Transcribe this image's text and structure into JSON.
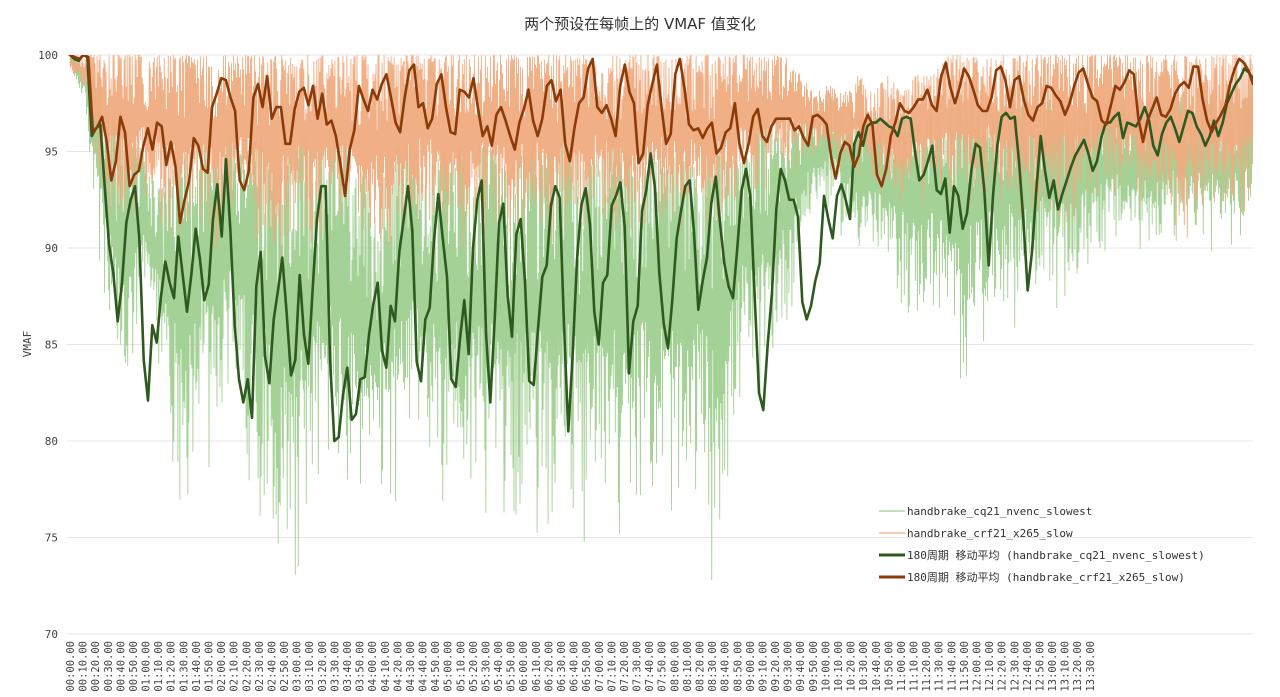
{
  "chart_data": {
    "type": "line",
    "title": "两个预设在每帧上的 VMAF 值变化",
    "xlabel": "",
    "ylabel": "VMAF",
    "ylim": [
      70,
      100
    ],
    "y_ticks": [
      "100",
      "95",
      "90",
      "85",
      "80",
      "75",
      "70"
    ],
    "x_ticks": [
      "00:00.00",
      "00:10.00",
      "00:20.00",
      "00:30.00",
      "00:40.00",
      "00:50.00",
      "01:00.00",
      "01:10.00",
      "01:20.00",
      "01:30.00",
      "01:40.00",
      "01:50.00",
      "02:00.00",
      "02:10.00",
      "02:20.00",
      "02:30.00",
      "02:40.00",
      "02:50.00",
      "03:00.00",
      "03:10.00",
      "03:20.00",
      "03:30.00",
      "03:40.00",
      "03:50.00",
      "04:00.00",
      "04:10.00",
      "04:20.00",
      "04:30.00",
      "04:40.00",
      "04:50.00",
      "05:00.00",
      "05:10.00",
      "05:20.00",
      "05:30.00",
      "05:40.00",
      "05:50.00",
      "06:00.00",
      "06:10.00",
      "06:20.00",
      "06:30.00",
      "06:40.00",
      "06:50.00",
      "07:00.00",
      "07:10.00",
      "07:20.00",
      "07:30.00",
      "07:40.00",
      "07:50.00",
      "08:00.00",
      "08:10.00",
      "08:20.00",
      "08:30.00",
      "08:40.00",
      "08:50.00",
      "09:00.00",
      "09:10.00",
      "09:20.00",
      "09:30.00",
      "09:40.00",
      "09:50.00",
      "10:00.00",
      "10:10.00",
      "10:20.00",
      "10:30.00",
      "10:40.00",
      "10:50.00",
      "11:00.00",
      "11:10.00",
      "11:20.00",
      "11:30.00",
      "11:40.00",
      "11:50.00",
      "12:00.00",
      "12:10.00",
      "12:20.00",
      "12:30.00",
      "12:40.00",
      "12:50.00",
      "13:00.00",
      "13:10.00",
      "13:20.00",
      "13:30.00"
    ],
    "grid": true,
    "legend_position": "bottom-right",
    "colors": {
      "nvenc_raw": "#9fcf8f",
      "x265_raw": "#f0ab80",
      "nvenc_ma": "#2e5a1f",
      "x265_ma": "#8b3a0a",
      "grid": "#e6e6e6"
    },
    "series": [
      {
        "name": "handbrake_cq21_nvenc_slowest",
        "kind": "raw",
        "envelope_top": [
          100,
          99.5,
          99,
          97,
          96,
          95,
          93,
          94,
          95,
          96,
          94.5,
          96,
          95,
          96,
          94,
          95,
          96,
          95,
          96,
          95.5,
          94,
          93,
          95,
          96,
          94,
          95,
          96,
          95,
          96,
          95,
          94,
          95,
          96,
          95,
          96,
          95,
          95,
          96,
          95,
          94,
          95,
          96,
          95,
          94,
          96,
          95,
          96,
          97,
          96,
          96.5,
          97,
          97,
          98,
          97,
          97.5,
          97,
          96,
          97,
          96.5,
          97,
          97.5,
          98,
          97.5,
          98,
          97.5,
          98,
          97,
          98,
          97.5,
          97,
          98,
          97.5,
          98,
          97,
          98,
          97.5,
          98,
          97,
          98,
          97,
          98,
          99
        ],
        "envelope_bottom": [
          99.5,
          97,
          87.5,
          81,
          80,
          86,
          84,
          77,
          74.5,
          79,
          77,
          83,
          78,
          75,
          73,
          71,
          74,
          76,
          77,
          74,
          76,
          73.5,
          75,
          76,
          80,
          75,
          77,
          74,
          76,
          75,
          74,
          75,
          73.5,
          74,
          75,
          72,
          75,
          76,
          72.5,
          77,
          75,
          75,
          72,
          77,
          71.5,
          76,
          81,
          80,
          83,
          85,
          89,
          91.5,
          91.5,
          90,
          89,
          88.5,
          88,
          86,
          85,
          86,
          84,
          80.5,
          85,
          84.5,
          86,
          85.5,
          86.5,
          87,
          86,
          87,
          88.5,
          89,
          89,
          89.5,
          89,
          90,
          89,
          90,
          89.5,
          90,
          89,
          91
        ]
      },
      {
        "name": "handbrake_crf21_x265_slow",
        "kind": "raw",
        "envelope_top": [
          100,
          100,
          100,
          100,
          100,
          100,
          100,
          100,
          100,
          100,
          100,
          100,
          100,
          100,
          100,
          100,
          100,
          100,
          100,
          100,
          100,
          100,
          100,
          100,
          100,
          100,
          100,
          100,
          100,
          100,
          100,
          100,
          100,
          100,
          100,
          100,
          100,
          100,
          100,
          100,
          100,
          100,
          100,
          100,
          100,
          100,
          100,
          100,
          100,
          100,
          99,
          98,
          98.5,
          98,
          99,
          98,
          99,
          98,
          99,
          99,
          100,
          100,
          100,
          100,
          100,
          100,
          100,
          100,
          100,
          100,
          100,
          100,
          100,
          100,
          100,
          100,
          100,
          100,
          100,
          100,
          100,
          100
        ],
        "envelope_bottom": [
          99,
          98,
          92,
          91,
          90.5,
          92,
          91,
          90,
          89.5,
          90,
          89,
          90,
          91,
          89,
          88.5,
          89,
          90,
          89,
          90,
          90.5,
          89,
          88.5,
          88.5,
          90,
          91,
          90,
          90,
          89.5,
          90,
          90.5,
          89,
          90.5,
          90,
          89.5,
          90.5,
          90,
          91,
          90,
          89.5,
          90,
          91,
          90.5,
          90,
          91,
          90,
          90.5,
          92,
          92,
          93,
          93,
          94,
          94.5,
          94,
          93.5,
          93,
          92.5,
          92,
          91,
          92,
          91.5,
          92,
          91,
          91.5,
          92,
          91,
          90.5,
          91,
          91.5,
          91,
          91,
          91.5,
          92,
          91.5,
          91,
          90.5,
          90,
          89.5,
          90.5,
          91,
          90.5,
          91,
          91
        ]
      },
      {
        "name": "180周期 移动平均 (handbrake_cq21_nvenc_slowest)",
        "kind": "moving_average",
        "values": [
          100,
          99.8,
          99.7,
          100,
          99.9,
          95.8,
          96.2,
          96.4,
          93.2,
          90.2,
          88.7,
          86.2,
          88.2,
          91.3,
          92.5,
          93.2,
          90.5,
          84.2,
          82.1,
          86,
          85.1,
          87.5,
          89.3,
          88.2,
          87.4,
          90.6,
          88.6,
          86.7,
          88.6,
          91,
          89.4,
          87.3,
          88.1,
          91.5,
          93.3,
          90.6,
          94.6,
          91,
          86,
          83.2,
          82,
          83.2,
          81.2,
          88,
          89.8,
          84.4,
          83,
          86.3,
          87.8,
          89.5,
          86.6,
          83.4,
          84.2,
          88.6,
          85.5,
          84,
          87.9,
          91.5,
          93.2,
          93.2,
          84.3,
          80,
          80.2,
          82.4,
          83.8,
          81.1,
          81.4,
          83.2,
          83.3,
          85.5,
          87.1,
          88.2,
          84.7,
          83.8,
          87,
          86.2,
          89.8,
          91.5,
          93.2,
          90.9,
          84.1,
          83.1,
          86.3,
          86.9,
          90.4,
          92.8,
          90.5,
          88.5,
          83.2,
          82.8,
          85.3,
          87.3,
          84.5,
          90,
          92.5,
          93.5,
          85.6,
          82,
          86.3,
          91.3,
          92.3,
          87.5,
          85.4,
          90.7,
          91.5,
          88.2,
          83.1,
          82.9,
          85.8,
          88.5,
          89.1,
          92.2,
          93.2,
          92.6,
          86,
          80.5,
          84.5,
          89.4,
          92.2,
          93.1,
          91.2,
          86.7,
          85,
          88.2,
          88.6,
          92.2,
          92.7,
          93.4,
          91.1,
          83.5,
          86.2,
          87,
          91.9,
          93,
          94.9,
          93.1,
          88.7,
          86.1,
          84.8,
          87.3,
          90.5,
          91.9,
          93.2,
          93.5,
          90.8,
          86.8,
          88.3,
          89.5,
          92.3,
          93.7,
          91.3,
          89.2,
          88,
          87.4,
          90,
          93,
          94.1,
          92.7,
          87.5,
          82.5,
          81.6,
          85,
          87.7,
          92,
          94.1,
          93.5,
          92.5,
          92.5,
          91.6,
          87.2,
          86.3,
          87,
          88.3,
          89.2,
          92.7,
          91.5,
          90.5,
          92.7,
          93.3,
          92.5,
          91.5,
          95.4,
          96,
          95.3,
          96.3,
          96.5,
          96.5,
          96.7,
          96.5,
          96.3,
          96.2,
          95.8,
          96.7,
          96.8,
          96.7,
          95,
          93.5,
          93.8,
          94.5,
          95.3,
          93,
          92.8,
          93.6,
          90.8,
          93.2,
          92.7,
          91,
          91.8,
          94,
          95.4,
          95.2,
          93,
          89.1,
          92.7,
          95.3,
          96.8,
          97,
          96.7,
          96.8,
          94.5,
          91.5,
          87.8,
          89.8,
          93,
          95.8,
          94,
          92.6,
          93.5,
          92,
          92.8,
          93.5,
          94.2,
          94.8,
          95.2,
          95.6,
          94.9,
          94,
          94.5,
          95.7,
          96.5,
          96.5,
          96.8,
          97,
          95.7,
          96.5,
          96.4,
          96.3,
          96.7,
          97.3,
          96.6,
          95.3,
          94.8,
          95.9,
          96.5,
          96.8,
          96.2,
          95.5,
          96.3,
          97.1,
          97,
          96.3,
          95.9,
          95.3,
          95.8,
          96.6,
          95.8,
          96.5,
          97.5,
          98,
          98.5,
          98.8,
          99.3,
          99.1,
          98.8
        ]
      },
      {
        "name": "180周期 移动平均 (handbrake_crf21_x265_slow)",
        "kind": "moving_average",
        "values": [
          100,
          99.9,
          99.8,
          100,
          99.9,
          96,
          96.3,
          96.8,
          95.5,
          93.5,
          94.5,
          96.8,
          96,
          93.2,
          93.8,
          94,
          95.3,
          96.2,
          95.1,
          96.5,
          96.3,
          94.3,
          95.5,
          94.2,
          91.3,
          92.5,
          93.5,
          95.7,
          95.3,
          94.1,
          93.9,
          97.3,
          98,
          98.8,
          98.7,
          97.8,
          97.1,
          93.5,
          93,
          94,
          97.8,
          98.5,
          97.3,
          98.9,
          96.7,
          97.3,
          97.3,
          95.4,
          95.4,
          97.2,
          98.1,
          98.3,
          97.4,
          98.4,
          96.7,
          98,
          96.4,
          96.6,
          95.8,
          94.3,
          92.7,
          95.1,
          96.1,
          98.4,
          97.7,
          97.1,
          98.2,
          97.7,
          98.5,
          99,
          97.8,
          96.5,
          96,
          97.8,
          99.2,
          99.5,
          97.3,
          97.5,
          96.2,
          96.7,
          98.5,
          99,
          97.3,
          96,
          95.9,
          98.2,
          98.1,
          97.8,
          98.8,
          97.2,
          95.8,
          96.3,
          95.3,
          96.9,
          97.3,
          96.6,
          95.8,
          95.1,
          96.5,
          97.2,
          98.2,
          96.6,
          95.8,
          96.7,
          98.4,
          98.7,
          97.6,
          98.2,
          95.4,
          94.5,
          96.2,
          97.5,
          97.8,
          99.3,
          99.8,
          97.3,
          97,
          97.4,
          96.7,
          95.8,
          98.4,
          99.5,
          98.1,
          97.5,
          94.4,
          94.9,
          97.4,
          98.5,
          99.5,
          97.3,
          95.4,
          95.9,
          99,
          99.8,
          98.3,
          96.4,
          96.1,
          96.2,
          95.7,
          96.2,
          96.5,
          94.9,
          95.2,
          96,
          96.2,
          97.5,
          95.4,
          94.4,
          95.4,
          96.8,
          97.2,
          95.8,
          95.5,
          96.3,
          96.7,
          96.7,
          96.7,
          96.7,
          96.1,
          96.3,
          95.7,
          95.3,
          96.8,
          96.9,
          96.7,
          96.4,
          94.7,
          93.6,
          94.9,
          95.5,
          95.3,
          94.2,
          94.8,
          96.3,
          96.9,
          96.4,
          93.8,
          93.2,
          94.1,
          95.8,
          96.5,
          97.5,
          97.1,
          97,
          97.3,
          97.7,
          97.7,
          98.2,
          97.4,
          97.1,
          98.9,
          99.6,
          98.3,
          97.5,
          98.3,
          99.3,
          98.9,
          98.2,
          97.4,
          97.1,
          97.1,
          97.8,
          99.2,
          99.4,
          98.7,
          97.3,
          98.7,
          98.9,
          97.7,
          96.9,
          96.6,
          97.3,
          97.5,
          98.4,
          98.3,
          97.9,
          97.6,
          96.9,
          97.5,
          98.4,
          99.1,
          99.3,
          98.5,
          97.8,
          97.6,
          96.6,
          96.4,
          97.4,
          98.4,
          98.2,
          98.6,
          99.2,
          99,
          96.7,
          95.5,
          96.6,
          97.2,
          97.8,
          96.9,
          96.8,
          97.2,
          98,
          98.4,
          98.6,
          98.3,
          99.4,
          99.4,
          97.7,
          96.6,
          96,
          96.5,
          96.9,
          97.4,
          98.5,
          99.3,
          99.8,
          99.6,
          99.2,
          98.5
        ]
      }
    ]
  }
}
